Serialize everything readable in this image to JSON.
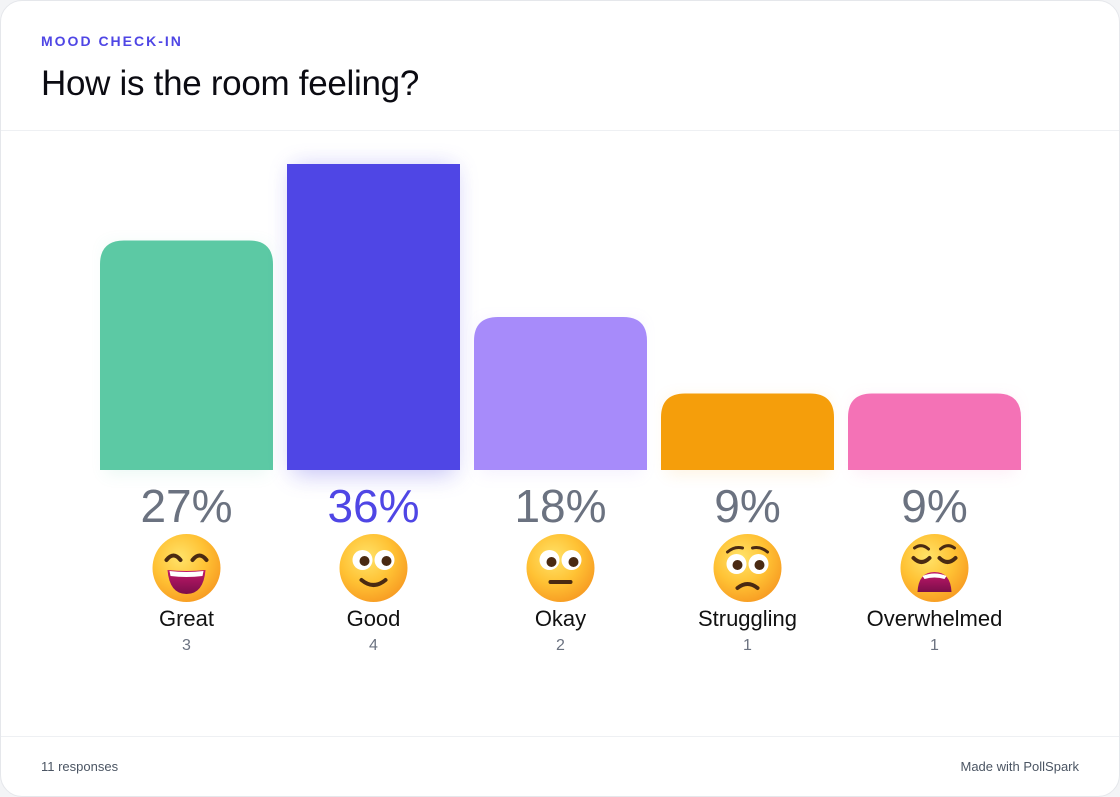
{
  "header": {
    "eyebrow": "MOOD CHECK-IN",
    "title": "How is the room feeling?"
  },
  "footer": {
    "responses": "11 responses",
    "credit": "Made with PollSpark"
  },
  "colors": {
    "Great": "#5cc9a4",
    "Good": "#4f46e5",
    "Okay": "#a78bfa",
    "Struggling": "#f59e0b",
    "Overwhelmed": "#f472b6",
    "percent_default": "#6b7280",
    "percent_highlight": "#4f46e5",
    "label": "#111111",
    "count": "#6b7280"
  },
  "chart_data": {
    "type": "bar",
    "categories": [
      "Great",
      "Good",
      "Okay",
      "Struggling",
      "Overwhelmed"
    ],
    "values": [
      3,
      4,
      2,
      1,
      1
    ],
    "percent_labels": [
      "27%",
      "36%",
      "18%",
      "9%",
      "9%"
    ],
    "count_labels": [
      "3",
      "4",
      "2",
      "1",
      "1"
    ],
    "icons": [
      "grinning-face-icon",
      "smiling-face-icon",
      "neutral-face-icon",
      "worried-face-icon",
      "weary-face-icon"
    ],
    "highlight": "Good",
    "ylim": [
      0,
      4
    ],
    "grid": false,
    "legend": "none"
  }
}
